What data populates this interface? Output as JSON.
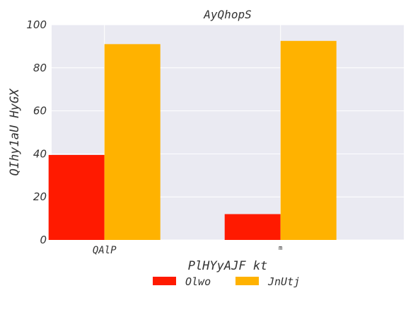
{
  "chart_data": {
    "type": "bar",
    "title": "AyQhopS",
    "xlabel": "PlHYyAJF kt",
    "ylabel": "QIhy1aU  HyGX",
    "categories": [
      "QAlP",
      "m"
    ],
    "series": [
      {
        "name": "Olwo",
        "color": "#ff1a00",
        "values": [
          39.5,
          12.0
        ]
      },
      {
        "name": "JnUtj",
        "color": "#ffb200",
        "values": [
          91.0,
          92.5
        ]
      }
    ],
    "ylim": [
      0,
      100
    ],
    "yticks": [
      0,
      20,
      40,
      60,
      80,
      100
    ],
    "grid": true,
    "legend_position": "bottom-center",
    "background": "#eaeaf2"
  }
}
